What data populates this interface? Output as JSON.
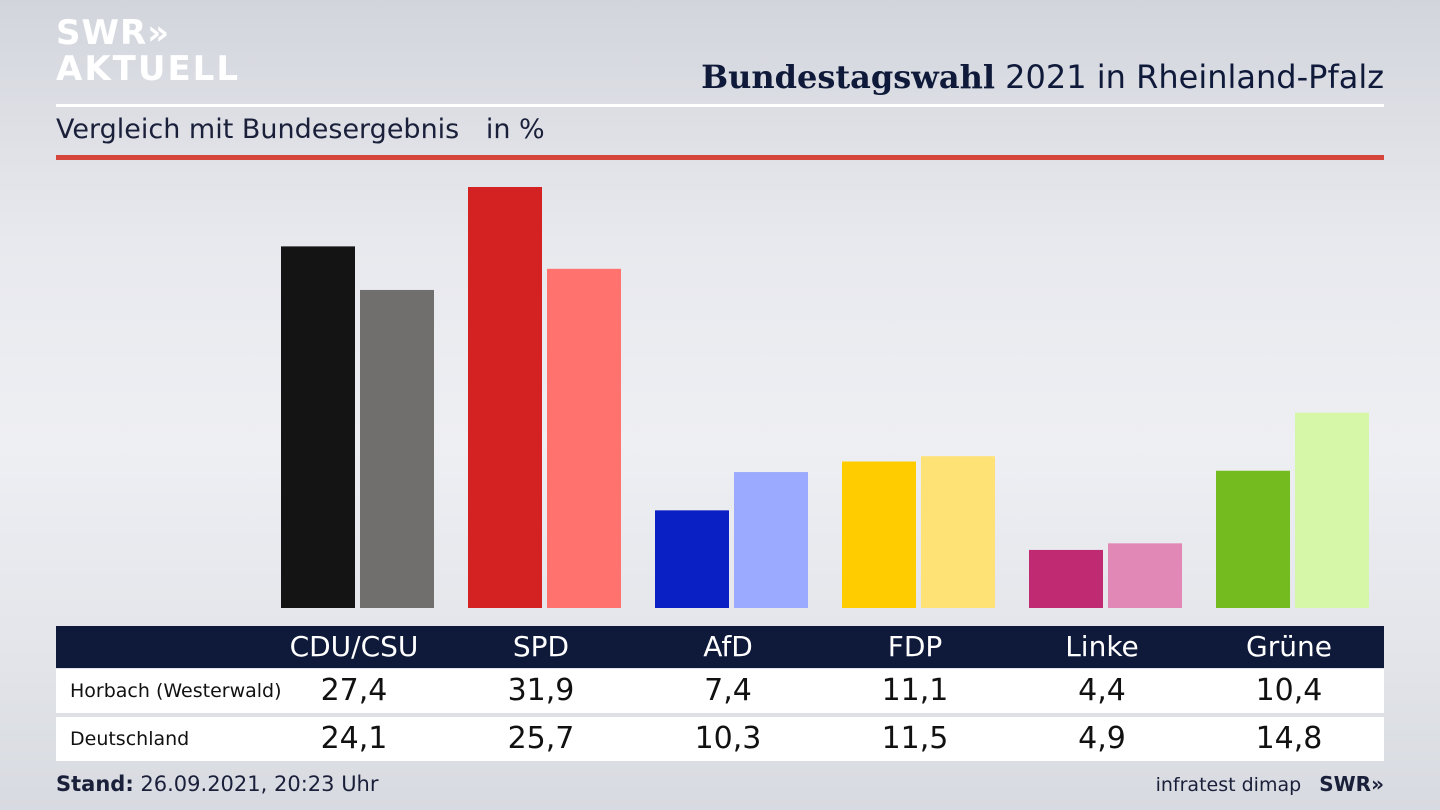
{
  "branding": {
    "logo_line1": "SWR»",
    "logo_line2": "AKTUELL",
    "footer_source": "infratest dimap",
    "footer_logo": "SWR»"
  },
  "header": {
    "title_bold": "Bundestagswahl",
    "title_rest": "2021 in Rheinland-Pfalz",
    "subtitle": "Vergleich mit Bundesergebnis",
    "unit": "in %"
  },
  "table": {
    "parties": [
      "CDU/CSU",
      "SPD",
      "AfD",
      "FDP",
      "Linke",
      "Grüne"
    ],
    "rows": [
      {
        "label": "Horbach (Westerwald)",
        "values": [
          "27,4",
          "31,9",
          "7,4",
          "11,1",
          "4,4",
          "10,4"
        ]
      },
      {
        "label": "Deutschland",
        "values": [
          "24,1",
          "25,7",
          "10,3",
          "11,5",
          "4,9",
          "14,8"
        ]
      }
    ]
  },
  "footer": {
    "stand_label": "Stand:",
    "stand_value": "26.09.2021, 20:23 Uhr"
  },
  "chart_data": {
    "type": "bar",
    "title": "Bundestagswahl 2021 in Rheinland-Pfalz",
    "subtitle": "Vergleich mit Bundesergebnis",
    "ylabel": "in %",
    "categories": [
      "CDU/CSU",
      "SPD",
      "AfD",
      "FDP",
      "Linke",
      "Grüne"
    ],
    "series": [
      {
        "name": "Horbach (Westerwald)",
        "values": [
          27.4,
          31.9,
          7.4,
          11.1,
          4.4,
          10.4
        ]
      },
      {
        "name": "Deutschland",
        "values": [
          24.1,
          25.7,
          10.3,
          11.5,
          4.9,
          14.8
        ]
      }
    ],
    "colors": {
      "primary": [
        "#141414",
        "#d42121",
        "#0a1fc4",
        "#ffcc00",
        "#c02a72",
        "#74bb1f"
      ],
      "secondary": [
        "#706f6d",
        "#ff726d",
        "#9ba9ff",
        "#ffe275",
        "#e188b6",
        "#d6f6a8"
      ]
    },
    "ylim": [
      0,
      31.9
    ],
    "grid": false,
    "legend": "none"
  }
}
